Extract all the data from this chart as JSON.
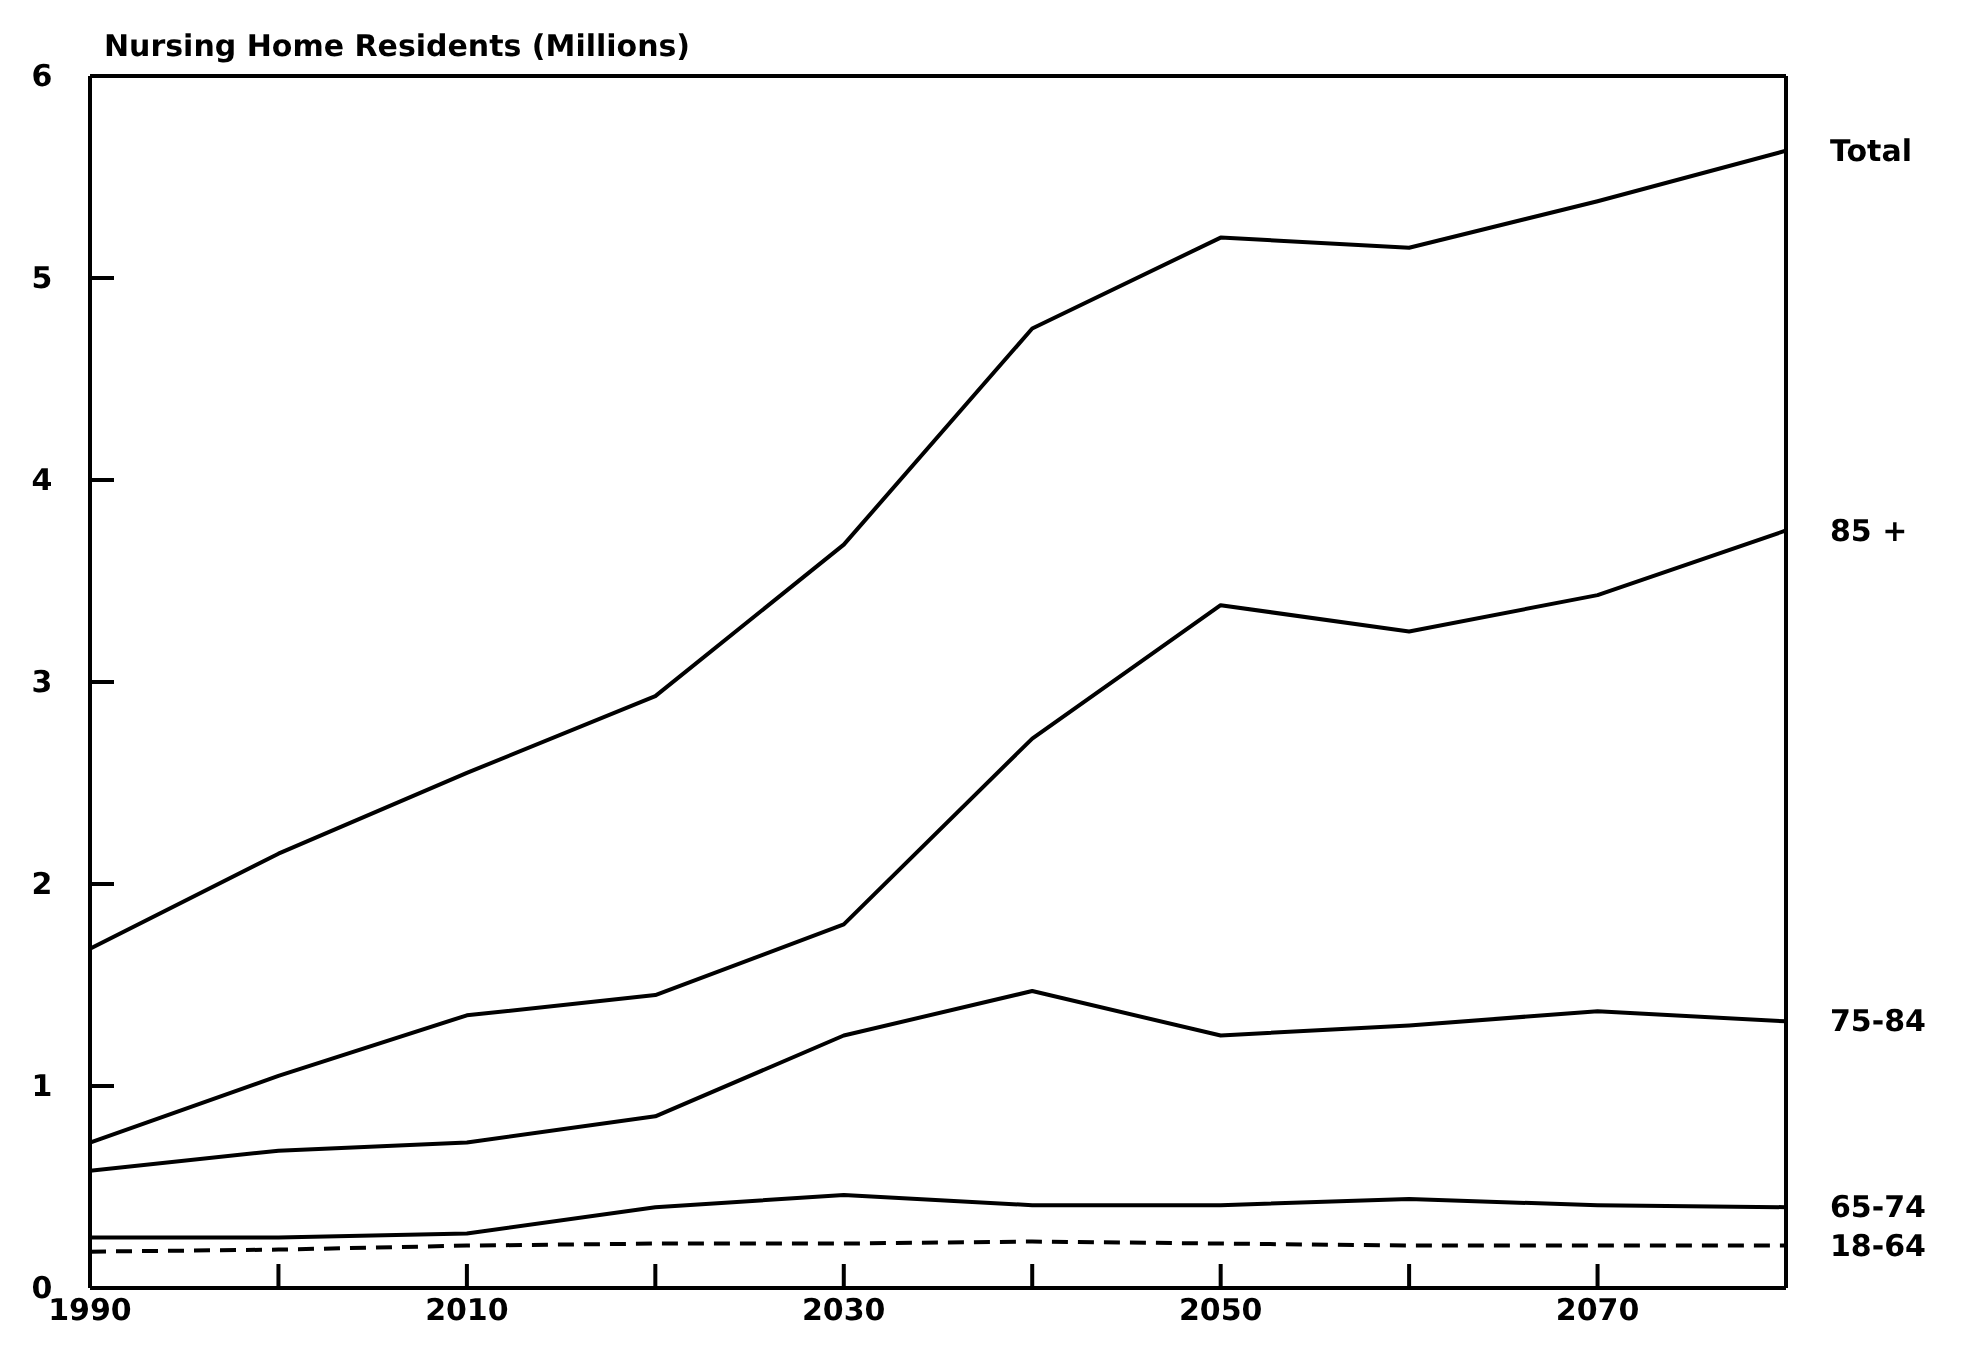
{
  "chart_data": {
    "type": "line",
    "ylabel": "Nursing Home Residents (Millions)",
    "x": [
      1990,
      2000,
      2010,
      2020,
      2030,
      2040,
      2050,
      2060,
      2070,
      2080
    ],
    "series": [
      {
        "name": "Total",
        "color": "#000000",
        "values": [
          1.68,
          2.15,
          2.55,
          2.93,
          3.68,
          4.75,
          5.2,
          5.15,
          5.38,
          5.63
        ]
      },
      {
        "name": "85 +",
        "color": "#000000",
        "values": [
          0.72,
          1.05,
          1.35,
          1.45,
          1.8,
          2.72,
          3.38,
          3.25,
          3.43,
          3.75
        ]
      },
      {
        "name": "75-84",
        "color": "#000000",
        "values": [
          0.58,
          0.68,
          0.72,
          0.85,
          1.25,
          1.47,
          1.25,
          1.3,
          1.37,
          1.32
        ]
      },
      {
        "name": "65-74",
        "color": "#000000",
        "values": [
          0.25,
          0.25,
          0.27,
          0.4,
          0.46,
          0.41,
          0.41,
          0.44,
          0.41,
          0.4
        ]
      },
      {
        "name": "18-64",
        "color": "#000000",
        "line_style": "dashed",
        "values": [
          0.18,
          0.19,
          0.21,
          0.22,
          0.22,
          0.23,
          0.22,
          0.21,
          0.21,
          0.21
        ]
      }
    ],
    "xlim": [
      1990,
      2080
    ],
    "xticks": [
      1990,
      {
        "value": 2000,
        "label": null
      },
      2010,
      {
        "value": 2020,
        "label": null
      },
      2030,
      {
        "value": 2040,
        "label": null
      },
      2050,
      {
        "value": 2060,
        "label": null
      },
      2070,
      {
        "value": 2080,
        "label": null
      }
    ],
    "ylim": [
      0,
      6
    ],
    "yticks": [
      0,
      1,
      2,
      3,
      4,
      5,
      6
    ],
    "grid": false,
    "legend": false,
    "marker": "none",
    "line_style": "solid"
  }
}
